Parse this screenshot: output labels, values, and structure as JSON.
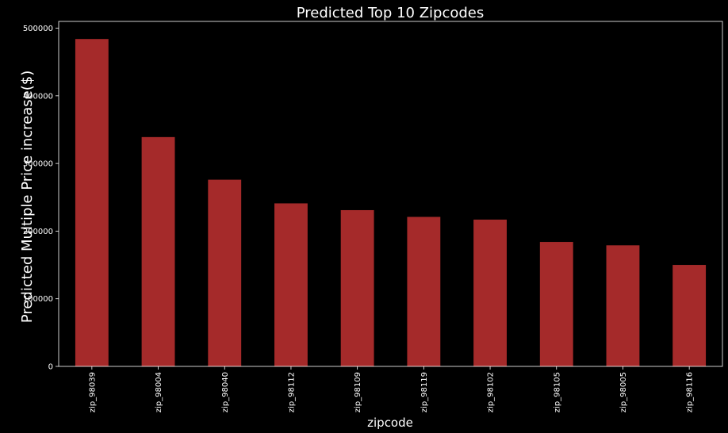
{
  "chart_data": {
    "type": "bar",
    "title": "Predicted Top 10 Zipcodes",
    "xlabel": "zipcode",
    "ylabel": "Predicted Multiple Price increase($)",
    "categories": [
      "zip_98039",
      "zip_98004",
      "zip_98040",
      "zip_98112",
      "zip_98109",
      "zip_98119",
      "zip_98102",
      "zip_98105",
      "zip_98005",
      "zip_98116"
    ],
    "values": [
      484000,
      339000,
      276000,
      241000,
      231000,
      221000,
      217000,
      184000,
      179000,
      150000
    ],
    "ylim": [
      0,
      510000
    ],
    "yticks": [
      0,
      100000,
      200000,
      300000,
      400000,
      500000
    ],
    "ytick_labels": [
      "0",
      "100000",
      "200000",
      "300000",
      "400000",
      "500000"
    ],
    "grid": false,
    "legend": "none",
    "colors": {
      "background": "#000000",
      "bar": "#a52a2a",
      "axis": "#ffffff",
      "text": "#ffffff"
    }
  }
}
